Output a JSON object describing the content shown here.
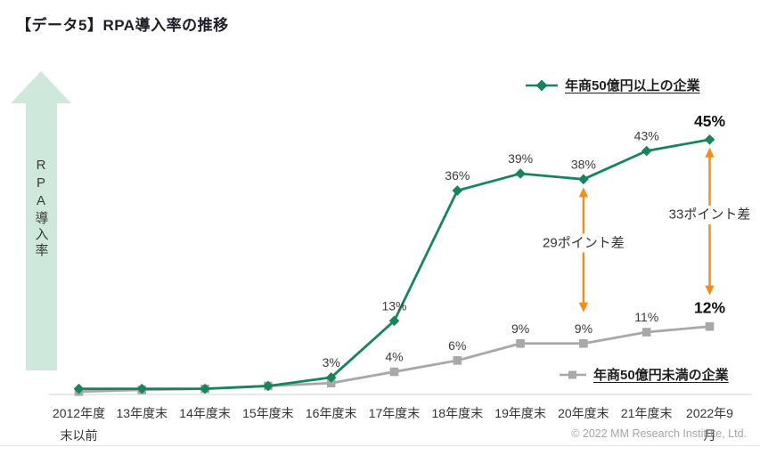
{
  "title": "【データ5】RPA導入率の推移",
  "copyright": "© 2022 MM Research Institute, Ltd.",
  "y_axis": {
    "label": "RPA導入率"
  },
  "legends": {
    "above": "年商50億円以上の企業",
    "below": "年商50億円未満の企業"
  },
  "colors": {
    "series_above": "#17845C",
    "series_below": "#A8A8A8",
    "annotation_orange": "#F28D1C",
    "mint_arrow": "#CEE9DC",
    "axis_line": "#D9D9D9",
    "divider_line": "#E5E5E5",
    "label_text": "#3A3A3A",
    "emphasis_text": "#0F0F0F",
    "annotation_text": "#333333"
  },
  "chart_data": {
    "type": "line",
    "title": "【データ5】RPA導入率の推移",
    "ylabel": "RPA導入率",
    "xlabel": "",
    "ylim": [
      0,
      50
    ],
    "grid": false,
    "legend_position": "top-right / bottom-right",
    "categories": [
      "2012年度\n末以前",
      "13年度末",
      "14年度末",
      "15年度末",
      "16年度末",
      "17年度末",
      "18年度末",
      "19年度末",
      "20年度末",
      "21年度末",
      "2022年9月"
    ],
    "series": [
      {
        "name": "年商50億円以上の企業",
        "marker": "diamond",
        "color": "#17845C",
        "values": [
          1,
          1,
          1,
          1.5,
          3,
          13,
          36,
          39,
          38,
          43,
          45
        ],
        "labels": [
          "",
          "",
          "",
          "",
          "3%",
          "13%",
          "36%",
          "39%",
          "38%",
          "43%",
          "45%"
        ]
      },
      {
        "name": "年商50億円未満の企業",
        "marker": "square",
        "color": "#A8A8A8",
        "values": [
          0.5,
          0.8,
          1,
          1.5,
          2,
          4,
          6,
          9,
          9,
          11,
          12
        ],
        "labels": [
          "",
          "",
          "",
          "",
          "",
          "4%",
          "6%",
          "9%",
          "9%",
          "11%",
          "12%"
        ]
      }
    ],
    "emphasized_index": 10,
    "annotations": [
      {
        "x_index": 8,
        "label": "29ポイント差",
        "from_value": 38,
        "to_value": 9
      },
      {
        "x_index": 10,
        "label": "33ポイント差",
        "from_value": 45,
        "to_value": 12
      }
    ]
  }
}
